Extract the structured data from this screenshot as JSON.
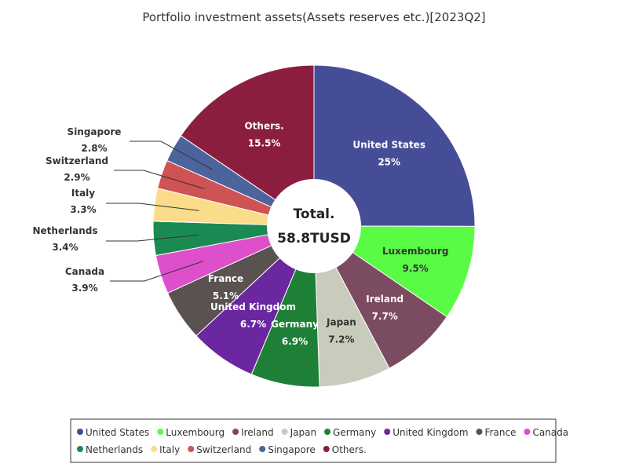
{
  "chart_data": {
    "type": "pie",
    "title": "Portfolio investment assets(Assets reserves etc.)[2023Q2]",
    "center_label": {
      "line1": "Total.",
      "line2": "58.8TUSD"
    },
    "slices": [
      {
        "name": "United States",
        "label": "United States",
        "value": 25,
        "value_text": "25%",
        "color": "#464d97"
      },
      {
        "name": "Luxembourg",
        "label": "Luxembourg",
        "value": 9.5,
        "value_text": "9.5%",
        "color": "#59fb45"
      },
      {
        "name": "Ireland",
        "label": "Ireland",
        "value": 7.7,
        "value_text": "7.7%",
        "color": "#7b4b61"
      },
      {
        "name": "Japan",
        "label": "Japan",
        "value": 7.2,
        "value_text": "7.2%",
        "color": "#c9cbbc"
      },
      {
        "name": "Germany",
        "label": "Germany",
        "value": 6.9,
        "value_text": "6.9%",
        "color": "#1e8037"
      },
      {
        "name": "United Kingdom",
        "label": "United Kingdom",
        "value": 6.7,
        "value_text": "6.7%",
        "color": "#6b27a0"
      },
      {
        "name": "France",
        "label": "France",
        "value": 5.1,
        "value_text": "5.1%",
        "color": "#5a5151"
      },
      {
        "name": "Canada",
        "label": "Canada",
        "value": 3.9,
        "value_text": "3.9%",
        "color": "#de4fcc"
      },
      {
        "name": "Netherlands",
        "label": "Netherlands",
        "value": 3.4,
        "value_text": "3.4%",
        "color": "#1b8a52"
      },
      {
        "name": "Italy",
        "label": "Italy",
        "value": 3.3,
        "value_text": "3.3%",
        "color": "#fbdc8a"
      },
      {
        "name": "Switzerland",
        "label": "Switzerland",
        "value": 2.9,
        "value_text": "2.9%",
        "color": "#cf5254"
      },
      {
        "name": "Singapore",
        "label": "Singapore",
        "value": 2.8,
        "value_text": "2.8%",
        "color": "#4d639c"
      },
      {
        "name": "Others.",
        "label": "Others.",
        "value": 15.5,
        "value_text": "15.5%",
        "color": "#8b1e3f"
      }
    ],
    "legend": {
      "placement": "bottom",
      "rows": [
        [
          "United States",
          "Luxembourg",
          "Ireland",
          "Japan",
          "Germany",
          "United Kingdom",
          "France",
          "Canada"
        ],
        [
          "Netherlands",
          "Italy",
          "Switzerland",
          "Singapore",
          "Others."
        ]
      ]
    }
  }
}
